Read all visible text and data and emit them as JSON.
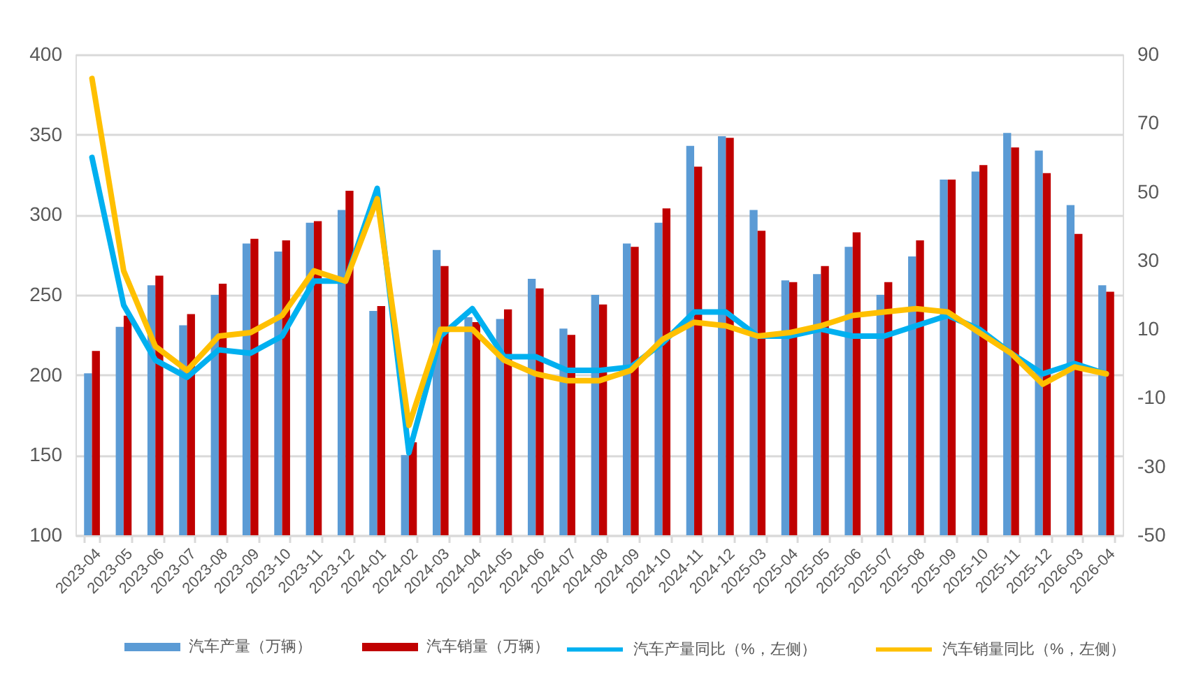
{
  "chart_data": {
    "type": "bar",
    "categories": [
      "2023-04",
      "2023-05",
      "2023-06",
      "2023-07",
      "2023-08",
      "2023-09",
      "2023-10",
      "2023-11",
      "2023-12",
      "2024-01",
      "2024-02",
      "2024-03",
      "2024-04",
      "2024-05",
      "2024-06",
      "2024-07",
      "2024-08",
      "2024-09",
      "2024-10",
      "2024-11",
      "2024-12",
      "2025-03",
      "2025-04",
      "2025-05",
      "2025-06",
      "2025-07",
      "2025-08",
      "2025-09",
      "2025-10",
      "2025-11",
      "2025-12",
      "2026-03",
      "2026-04"
    ],
    "series": [
      {
        "name": "汽车产量（万辆）",
        "color": "#5b9bd5",
        "values": [
          201,
          230,
          256,
          231,
          250,
          282,
          277,
          295,
          303,
          240,
          150,
          278,
          236,
          235,
          260,
          229,
          250,
          282,
          295,
          343,
          349,
          303,
          259,
          263,
          280,
          250,
          274,
          322,
          327,
          351,
          340,
          306,
          256
        ]
      },
      {
        "name": "汽车销量（万辆）",
        "color": "#c00000",
        "values": [
          215,
          237,
          262,
          238,
          257,
          285,
          284,
          296,
          315,
          243,
          158,
          268,
          233,
          241,
          254,
          225,
          244,
          280,
          304,
          330,
          348,
          290,
          258,
          268,
          289,
          258,
          284,
          322,
          331,
          342,
          326,
          288,
          252
        ]
      },
      {
        "name": "汽车产量同比（%，左侧）",
        "type": "line",
        "axis": "y2",
        "color": "#00b0f0",
        "values": [
          60,
          17,
          1,
          -4,
          4,
          3,
          8,
          24,
          24,
          51,
          -26,
          8,
          16,
          2,
          2,
          -2,
          -2,
          -1,
          6,
          15,
          15,
          8,
          8,
          10,
          8,
          8,
          11,
          14,
          10,
          3,
          -3,
          0,
          -3
        ]
      },
      {
        "name": "汽车销量同比（%，左侧）",
        "type": "line",
        "axis": "y2",
        "color": "#ffc000",
        "values": [
          83,
          27,
          5,
          -2,
          8,
          9,
          14,
          27,
          24,
          48,
          -18,
          10,
          10,
          1,
          -3,
          -5,
          -5,
          -2,
          7,
          12,
          11,
          8,
          9,
          11,
          14,
          15,
          16,
          15,
          9,
          3,
          -6,
          -1,
          -3
        ]
      }
    ],
    "ylim": [
      100,
      400
    ],
    "yticks": [
      100,
      150,
      200,
      250,
      300,
      350,
      400
    ],
    "y2lim": [
      -50,
      90
    ],
    "y2ticks": [
      -50,
      -30,
      -10,
      10,
      30,
      50,
      70,
      90
    ],
    "grid": "y",
    "legend": "bottom",
    "marker": "none",
    "line_style": "solid"
  }
}
